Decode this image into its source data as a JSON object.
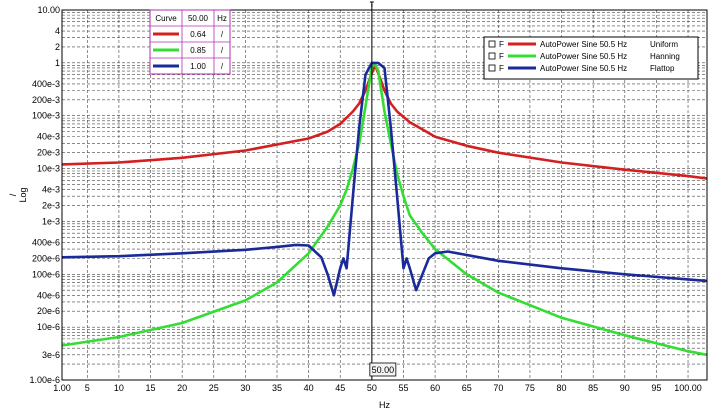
{
  "chart_data": {
    "type": "line",
    "xlabel": "Hz",
    "ylabel": "/",
    "ylabel_scale": "Log",
    "xlim": [
      1,
      103
    ],
    "ylim": [
      1e-06,
      10
    ],
    "y_scale": "log",
    "grid": true,
    "x_ticks": [
      "1.00",
      "5",
      "10",
      "15",
      "20",
      "25",
      "30",
      "35",
      "40",
      "45",
      "50",
      "55",
      "60",
      "65",
      "70",
      "75",
      "80",
      "85",
      "90",
      "95",
      "100.00"
    ],
    "x_tick_values": [
      1,
      5,
      10,
      15,
      20,
      25,
      30,
      35,
      40,
      45,
      50,
      55,
      60,
      65,
      70,
      75,
      80,
      85,
      90,
      95,
      100
    ],
    "y_ticks": [
      {
        "label": "10.00",
        "value": 10
      },
      {
        "label": "4",
        "value": 4
      },
      {
        "label": "2",
        "value": 2
      },
      {
        "label": "1",
        "value": 1
      },
      {
        "label": "400e-3",
        "value": 0.4
      },
      {
        "label": "200e-3",
        "value": 0.2
      },
      {
        "label": "100e-3",
        "value": 0.1
      },
      {
        "label": "40e-3",
        "value": 0.04
      },
      {
        "label": "20e-3",
        "value": 0.02
      },
      {
        "label": "10e-3",
        "value": 0.01
      },
      {
        "label": "4e-3",
        "value": 0.004
      },
      {
        "label": "2e-3",
        "value": 0.002
      },
      {
        "label": "1e-3",
        "value": 0.001
      },
      {
        "label": "400e-6",
        "value": 0.0004
      },
      {
        "label": "200e-6",
        "value": 0.0002
      },
      {
        "label": "100e-6",
        "value": 0.0001
      },
      {
        "label": "40e-6",
        "value": 4e-05
      },
      {
        "label": "20e-6",
        "value": 2e-05
      },
      {
        "label": "10e-6",
        "value": 1e-05
      },
      {
        "label": "3e-6",
        "value": 3e-06
      },
      {
        "label": "1.00e-6",
        "value": 1e-06
      }
    ],
    "cursor": {
      "x": 50,
      "label": "50.00"
    },
    "cursor_table": {
      "headers": [
        "Curve",
        "50.00",
        "Hz"
      ],
      "rows": [
        {
          "color": "#d42020",
          "value": "0.64",
          "unit": "/"
        },
        {
          "color": "#33dd33",
          "value": "0.85",
          "unit": "/"
        },
        {
          "color": "#1a2a9a",
          "value": "1.00",
          "unit": "/"
        }
      ]
    },
    "legend": {
      "placement": "top-right",
      "entries": [
        {
          "prefix": "F",
          "name": "AutoPower Sine 50.5 Hz",
          "window": "Uniform",
          "color": "#d42020"
        },
        {
          "prefix": "F",
          "name": "AutoPower Sine 50.5 Hz",
          "window": "Hanning",
          "color": "#33dd33"
        },
        {
          "prefix": "F",
          "name": "AutoPower Sine 50.5 Hz",
          "window": "Flattop",
          "color": "#1a2a9a"
        }
      ]
    },
    "series": [
      {
        "name": "AutoPower Sine 50.5 Hz Uniform",
        "color": "#d42020",
        "x": [
          1,
          10,
          20,
          30,
          40,
          43,
          45,
          47,
          48,
          49,
          50,
          50.5,
          51,
          52,
          53,
          54,
          56,
          58,
          60,
          65,
          70,
          80,
          90,
          100,
          103
        ],
        "y": [
          0.012,
          0.013,
          0.016,
          0.022,
          0.037,
          0.05,
          0.07,
          0.12,
          0.17,
          0.3,
          0.64,
          0.9,
          0.64,
          0.3,
          0.17,
          0.12,
          0.075,
          0.055,
          0.04,
          0.027,
          0.02,
          0.013,
          0.0095,
          0.0072,
          0.0065
        ]
      },
      {
        "name": "AutoPower Sine 50.5 Hz Hanning",
        "color": "#33dd33",
        "x": [
          1,
          10,
          20,
          30,
          35,
          40,
          43,
          45,
          46,
          47,
          48,
          49,
          50,
          50.5,
          51,
          52,
          53,
          54,
          55,
          56,
          58,
          60,
          65,
          70,
          80,
          90,
          100,
          103
        ],
        "y": [
          4.5e-06,
          6.5e-06,
          1.2e-05,
          3.2e-05,
          7e-05,
          0.00025,
          0.0008,
          0.002,
          0.004,
          0.01,
          0.03,
          0.15,
          0.85,
          0.95,
          0.7,
          0.12,
          0.03,
          0.008,
          0.003,
          0.0013,
          0.0006,
          0.0003,
          0.0001,
          4.5e-05,
          1.5e-05,
          7e-06,
          3.5e-06,
          3e-06
        ]
      },
      {
        "name": "AutoPower Sine 50.5 Hz Flattop",
        "color": "#1a2a9a",
        "x": [
          1,
          10,
          20,
          30,
          35,
          38,
          40,
          42,
          43,
          44,
          45,
          45.5,
          46,
          47,
          48,
          49,
          50,
          51,
          52,
          53,
          54,
          55,
          55.5,
          56,
          57,
          58,
          59,
          60,
          62,
          70,
          80,
          90,
          100,
          103
        ],
        "y": [
          0.00021,
          0.00022,
          0.00025,
          0.00029,
          0.00033,
          0.00036,
          0.00035,
          0.00021,
          0.0001,
          4e-05,
          0.00013,
          0.0002,
          0.00013,
          0.003,
          0.06,
          0.6,
          1.0,
          1.0,
          0.8,
          0.06,
          0.003,
          0.00013,
          0.0002,
          0.00013,
          5e-05,
          0.0001,
          0.0002,
          0.00025,
          0.00027,
          0.00018,
          0.00013,
          0.0001,
          8e-05,
          7.5e-05
        ]
      }
    ]
  }
}
